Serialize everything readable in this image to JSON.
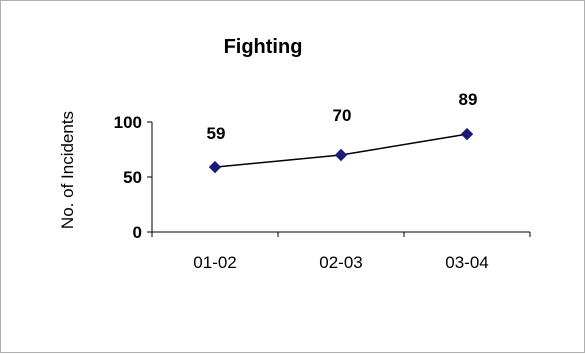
{
  "chart_data": {
    "type": "line",
    "title": "Fighting",
    "xlabel": "",
    "ylabel": "No. of Incidents",
    "categories": [
      "01-02",
      "02-03",
      "03-04"
    ],
    "series": [
      {
        "values": [
          59,
          70,
          89
        ]
      }
    ],
    "data_labels": [
      "59",
      "70",
      "89"
    ],
    "ylim": [
      0,
      100
    ],
    "yticks": [
      0,
      50,
      100
    ],
    "ytick_labels": [
      "0",
      "50",
      "100"
    ],
    "grid": false,
    "legend": "none",
    "colors": {
      "line": "#000000",
      "marker": "#1a1a7a",
      "frame": "#b0b0b0"
    }
  }
}
